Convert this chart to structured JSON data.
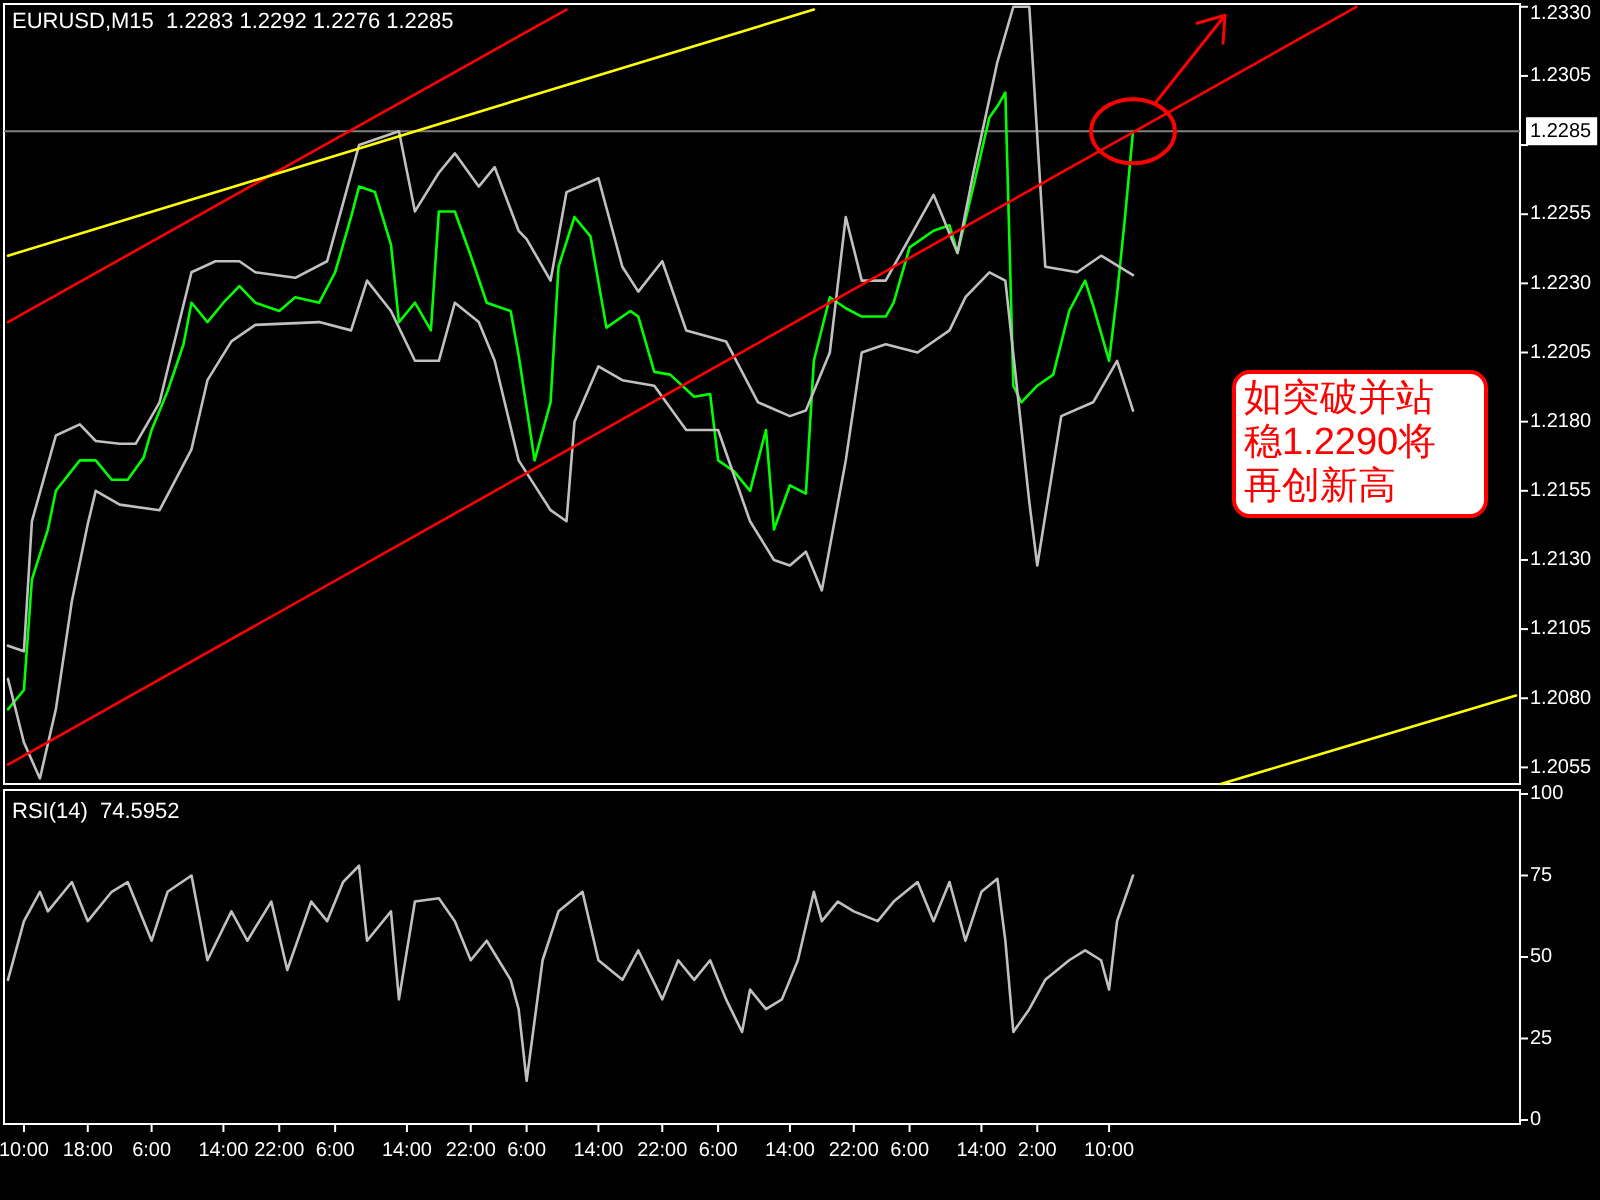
{
  "chart_data": [
    {
      "type": "line",
      "title": "EURUSD,M15  1.2283 1.2292 1.2276 1.2285",
      "categories": [
        null,
        null,
        null,
        null,
        null,
        null,
        null,
        null,
        null,
        null,
        null,
        null,
        null,
        null,
        null,
        null,
        null,
        null,
        null,
        null,
        null,
        null,
        null,
        null,
        null,
        null,
        null,
        null,
        null,
        null,
        null,
        null,
        null,
        null,
        null,
        null,
        null,
        null,
        null,
        null,
        null,
        null,
        null,
        null,
        null,
        null,
        null,
        null,
        null,
        null,
        null,
        null,
        null,
        null,
        null,
        null,
        null,
        null,
        null,
        null,
        null,
        null,
        null,
        null,
        null,
        null,
        null,
        null,
        null,
        null,
        null,
        null,
        null,
        null,
        null,
        null,
        null,
        null,
        null,
        null,
        null,
        null,
        null,
        null,
        null,
        null,
        null,
        null,
        null,
        null,
        null,
        null,
        null,
        null,
        null,
        null,
        null,
        null,
        null,
        null,
        null,
        null,
        null,
        null,
        null,
        null,
        null,
        null,
        null,
        null,
        null,
        null,
        null,
        null,
        null,
        null,
        null,
        null,
        null,
        null,
        null,
        null,
        null,
        null,
        null,
        null,
        null,
        null,
        null,
        null,
        null,
        null,
        null,
        null,
        null,
        null,
        null,
        null,
        null,
        null,
        null,
        null,
        null,
        null,
        null,
        null,
        null,
        null,
        null,
        null,
        null,
        null,
        null,
        null,
        null,
        null,
        null,
        null,
        null,
        null,
        null,
        null,
        null,
        null,
        null,
        null,
        null,
        null,
        null,
        null,
        null,
        null,
        null,
        null,
        null,
        null,
        null,
        null,
        null,
        null,
        null,
        null,
        null,
        null,
        null,
        null,
        null,
        null,
        null,
        null
      ],
      "ylim": [
        1.2049,
        1.2331
      ],
      "yticks": [
        {
          "value": 1.233,
          "label": "1.2330"
        },
        1.2305,
        {
          "value": 1.228,
          "label": null
        },
        1.2255,
        {
          "value": 1.223,
          "label": "1.2230"
        },
        1.2205,
        {
          "value": 1.218,
          "label": "1.2180"
        },
        1.2155,
        {
          "value": 1.213,
          "label": "1.2130"
        },
        1.2105,
        {
          "value": 1.208,
          "label": "1.2080"
        },
        1.2055
      ],
      "tick_labels": "y",
      "series": [
        {
          "color": "#00ff00",
          "values": [
            1.2076,
            null,
            1.2083,
            1.2123,
            null,
            1.2141,
            1.2155,
            null,
            null,
            1.2166,
            null,
            1.2166,
            null,
            1.2159,
            null,
            1.2159,
            null,
            1.2167,
            1.2177,
            null,
            1.2191,
            null,
            1.2208,
            1.2223,
            null,
            1.2216,
            null,
            1.2223,
            null,
            1.2229,
            null,
            1.2223,
            null,
            null,
            1.222,
            null,
            1.2225,
            null,
            null,
            1.2223,
            null,
            1.2234,
            null,
            1.2254,
            1.2265,
            null,
            1.2263,
            null,
            1.2244,
            1.2216,
            null,
            1.2223,
            null,
            1.2213,
            1.2256,
            null,
            1.2256,
            null,
            1.224,
            null,
            1.2223,
            null,
            null,
            1.222,
            1.2204,
            null,
            1.2166,
            null,
            1.2187,
            1.2236,
            null,
            1.2254,
            null,
            1.2247,
            null,
            1.2214,
            null,
            null,
            1.222,
            1.2218,
            null,
            1.2198,
            null,
            1.2197,
            null,
            null,
            1.2189,
            null,
            1.219,
            1.2166,
            null,
            1.2162,
            null,
            1.2155,
            null,
            1.2177,
            1.2141,
            null,
            1.2157,
            null,
            1.2154,
            1.2202,
            null,
            1.2225,
            null,
            1.2221,
            null,
            1.2218,
            null,
            null,
            1.2218,
            1.2223,
            null,
            1.2243,
            null,
            null,
            1.2249,
            null,
            1.2251,
            1.2241,
            null,
            1.2265,
            null,
            1.229,
            1.2294,
            1.2299,
            1.2193,
            1.2187,
            null,
            1.2193,
            null,
            1.2197,
            null,
            1.222,
            null,
            1.2231,
            1.2222,
            null,
            1.2202,
            1.2226,
            1.2254,
            1.2285,
            null,
            null,
            null,
            null,
            null,
            null,
            null,
            null,
            null,
            null,
            null,
            null,
            null,
            null,
            null,
            null,
            null,
            null,
            null,
            null,
            null,
            null,
            null,
            null,
            null,
            null,
            null,
            null,
            null,
            null,
            null,
            null,
            null,
            null,
            null,
            null,
            null,
            null,
            null,
            null,
            null,
            null,
            null,
            null,
            null,
            null,
            null,
            null
          ]
        },
        {
          "color": "#c0c0c0",
          "values": [
            1.2099,
            null,
            1.2097,
            1.2144,
            null,
            null,
            1.2175,
            null,
            null,
            1.2179,
            null,
            1.2173,
            null,
            null,
            1.2172,
            null,
            1.2172,
            null,
            null,
            1.2187,
            null,
            null,
            null,
            1.2234,
            null,
            null,
            1.2238,
            null,
            null,
            1.2238,
            null,
            1.2234,
            null,
            null,
            null,
            null,
            1.2232,
            null,
            null,
            null,
            1.2238,
            null,
            null,
            null,
            1.228,
            null,
            null,
            null,
            null,
            1.2285,
            null,
            1.2256,
            null,
            null,
            1.227,
            null,
            1.2277,
            null,
            null,
            1.2265,
            null,
            1.2272,
            null,
            null,
            1.2249,
            1.2246,
            null,
            null,
            1.2231,
            null,
            1.2263,
            null,
            null,
            null,
            1.2268,
            null,
            null,
            1.2236,
            null,
            1.2227,
            null,
            null,
            1.2238,
            null,
            null,
            1.2213,
            null,
            null,
            null,
            null,
            1.2209,
            null,
            null,
            null,
            1.2187,
            null,
            null,
            null,
            1.2182,
            null,
            1.2184,
            null,
            null,
            1.2205,
            null,
            1.2254,
            null,
            1.2231,
            null,
            null,
            1.2231,
            null,
            null,
            null,
            null,
            null,
            1.2262,
            null,
            null,
            1.2241,
            null,
            1.227,
            null,
            null,
            1.231,
            null,
            1.233,
            null,
            1.233,
            null,
            1.2236,
            null,
            null,
            null,
            1.2234,
            null,
            null,
            1.224,
            null,
            null,
            null,
            1.2233,
            null,
            null,
            null,
            null,
            null,
            null,
            null,
            null,
            null,
            null,
            null,
            null,
            null,
            null,
            null,
            null,
            null,
            null,
            null,
            null,
            null,
            null,
            null,
            null,
            null,
            null,
            null,
            null,
            null,
            null,
            null,
            null,
            null,
            null,
            null,
            null,
            null,
            null,
            null,
            null,
            null,
            null,
            null,
            null,
            null,
            null,
            null,
            null
          ]
        },
        {
          "color": "#c0c0c0",
          "values": [
            1.2087,
            null,
            1.2064,
            null,
            1.2051,
            null,
            1.2076,
            null,
            1.2115,
            null,
            1.2143,
            1.2155,
            null,
            null,
            1.215,
            null,
            null,
            null,
            null,
            1.2148,
            null,
            null,
            null,
            1.217,
            null,
            1.2195,
            null,
            null,
            1.2209,
            null,
            null,
            1.2215,
            null,
            null,
            null,
            null,
            null,
            null,
            null,
            1.2216,
            null,
            null,
            null,
            1.2213,
            null,
            1.2231,
            null,
            null,
            1.222,
            null,
            null,
            1.2202,
            null,
            null,
            1.2202,
            null,
            1.2223,
            null,
            null,
            1.2216,
            null,
            1.2202,
            null,
            null,
            1.2166,
            null,
            null,
            null,
            1.2148,
            null,
            1.2144,
            1.218,
            null,
            null,
            1.22,
            null,
            null,
            1.2195,
            null,
            null,
            null,
            1.2193,
            null,
            null,
            null,
            1.2177,
            null,
            null,
            null,
            1.2177,
            null,
            null,
            null,
            1.2144,
            null,
            null,
            1.213,
            null,
            1.2128,
            null,
            1.2133,
            null,
            1.2119,
            null,
            null,
            1.2166,
            null,
            1.2205,
            null,
            null,
            1.2208,
            null,
            null,
            null,
            1.2205,
            null,
            null,
            null,
            1.2213,
            null,
            1.2225,
            null,
            null,
            1.2234,
            null,
            1.2231,
            null,
            null,
            1.2151,
            1.2128,
            null,
            null,
            1.2182,
            null,
            null,
            null,
            1.2187,
            null,
            null,
            1.2202,
            null,
            1.2184,
            null,
            null,
            null,
            null,
            null,
            null,
            null,
            null,
            null,
            null,
            null,
            null,
            null,
            null,
            null,
            null,
            null,
            null,
            null,
            null,
            null,
            null,
            null,
            null,
            null,
            null,
            null,
            null,
            null,
            null,
            null,
            null,
            null,
            null,
            null,
            null,
            null,
            null,
            null,
            null,
            null,
            null,
            null,
            null,
            null,
            null,
            null,
            null
          ]
        },
        {
          "color": "#ff0000",
          "values": [
            1.2216,
            null,
            null,
            null,
            null,
            null,
            null,
            null,
            null,
            null,
            null,
            null,
            null,
            null,
            null,
            null,
            null,
            null,
            null,
            null,
            null,
            null,
            null,
            null,
            null,
            null,
            null,
            null,
            null,
            null,
            null,
            null,
            null,
            null,
            null,
            null,
            null,
            null,
            null,
            null,
            null,
            null,
            null,
            null,
            null,
            null,
            null,
            null,
            null,
            null,
            null,
            null,
            null,
            null,
            null,
            null,
            null,
            null,
            null,
            null,
            null,
            null,
            null,
            null,
            null,
            null,
            null,
            null,
            null,
            null,
            1.2329,
            null,
            null,
            null,
            null,
            null,
            null,
            null,
            null,
            null,
            null,
            null,
            null,
            null,
            null,
            null,
            null,
            null,
            null,
            null,
            null,
            null,
            null,
            null,
            null,
            null,
            null,
            null,
            null,
            null,
            null,
            null,
            null,
            null,
            null,
            null,
            null,
            null,
            null,
            null,
            null,
            null,
            null,
            null,
            null,
            null,
            null,
            null,
            null,
            null,
            null,
            null,
            null,
            null,
            null,
            null,
            null,
            null,
            null,
            null,
            null,
            null,
            null,
            null,
            null,
            null,
            null,
            null,
            null,
            null,
            null,
            null,
            null,
            null,
            null,
            null,
            null,
            null,
            null,
            null,
            null,
            null,
            null,
            null,
            null,
            null,
            null,
            null,
            null,
            null,
            null,
            null,
            null,
            null,
            null,
            null,
            null,
            null,
            null,
            null,
            null,
            null,
            null,
            null,
            null,
            null,
            null,
            null,
            null,
            null,
            null,
            null,
            null,
            null,
            null,
            null,
            null,
            null,
            null,
            null
          ]
        },
        {
          "color": "#ff0000",
          "values": [
            1.2056,
            null,
            null,
            null,
            null,
            null,
            null,
            null,
            null,
            null,
            null,
            null,
            null,
            null,
            null,
            null,
            null,
            null,
            null,
            null,
            null,
            null,
            null,
            null,
            null,
            null,
            null,
            null,
            null,
            null,
            null,
            null,
            null,
            null,
            null,
            null,
            null,
            null,
            null,
            null,
            null,
            null,
            null,
            null,
            null,
            null,
            null,
            null,
            null,
            null,
            null,
            null,
            null,
            null,
            null,
            null,
            null,
            null,
            null,
            null,
            null,
            null,
            null,
            null,
            null,
            null,
            null,
            null,
            null,
            null,
            null,
            null,
            null,
            null,
            null,
            null,
            null,
            null,
            null,
            null,
            null,
            null,
            null,
            null,
            null,
            null,
            null,
            null,
            null,
            null,
            null,
            null,
            null,
            null,
            null,
            null,
            null,
            null,
            null,
            null,
            null,
            null,
            null,
            null,
            null,
            null,
            null,
            null,
            null,
            null,
            null,
            null,
            null,
            null,
            null,
            null,
            null,
            null,
            null,
            null,
            null,
            null,
            null,
            null,
            null,
            null,
            null,
            null,
            null,
            null,
            null,
            null,
            null,
            null,
            null,
            null,
            null,
            null,
            null,
            null,
            null,
            null,
            null,
            null,
            null,
            null,
            null,
            null,
            null,
            null,
            null,
            null,
            null,
            null,
            null,
            null,
            null,
            null,
            null,
            null,
            null,
            null,
            null,
            null,
            null,
            null,
            null,
            null,
            null,
            1.233,
            null,
            null,
            null,
            null,
            null,
            null,
            null,
            null,
            null,
            null,
            null,
            null,
            null,
            null,
            null,
            null,
            null,
            null,
            null,
            null
          ]
        },
        {
          "color": "#ffff00",
          "values": [
            1.224,
            null,
            null,
            null,
            null,
            null,
            null,
            null,
            null,
            null,
            null,
            null,
            null,
            null,
            null,
            null,
            null,
            null,
            null,
            null,
            null,
            null,
            null,
            null,
            null,
            null,
            null,
            null,
            null,
            null,
            null,
            null,
            null,
            null,
            null,
            null,
            null,
            null,
            null,
            null,
            null,
            null,
            null,
            null,
            null,
            null,
            null,
            null,
            null,
            null,
            null,
            null,
            null,
            null,
            null,
            null,
            null,
            null,
            null,
            null,
            null,
            null,
            null,
            null,
            null,
            null,
            null,
            null,
            null,
            null,
            null,
            null,
            null,
            null,
            null,
            null,
            null,
            null,
            null,
            null,
            null,
            null,
            null,
            null,
            null,
            null,
            null,
            null,
            null,
            null,
            null,
            null,
            null,
            null,
            null,
            null,
            null,
            null,
            null,
            null,
            null,
            1.2329,
            null,
            null,
            null,
            null,
            null,
            null,
            null,
            null,
            null,
            null,
            null,
            null,
            null,
            null,
            null,
            null,
            null,
            null,
            null,
            null,
            null,
            null,
            null,
            null,
            null,
            null,
            null,
            null,
            null,
            null,
            null,
            null,
            null,
            null,
            null,
            null,
            null,
            null,
            null,
            null,
            null,
            null,
            null,
            null,
            null,
            null,
            null,
            null,
            null,
            null,
            null,
            null,
            null,
            null,
            null,
            null,
            null,
            null,
            null,
            null,
            null,
            null,
            null,
            null,
            null,
            null,
            null,
            null,
            null,
            null,
            null,
            null,
            null,
            null,
            null,
            null,
            null,
            null,
            null,
            null,
            null,
            null,
            null,
            null,
            null,
            null,
            null,
            null
          ]
        },
        {
          "color": "#ffff00",
          "values": [
            null,
            null,
            null,
            null,
            null,
            null,
            null,
            null,
            null,
            null,
            null,
            null,
            null,
            null,
            null,
            null,
            null,
            null,
            null,
            null,
            null,
            null,
            null,
            null,
            null,
            null,
            null,
            null,
            null,
            null,
            null,
            null,
            null,
            null,
            null,
            null,
            null,
            null,
            null,
            null,
            null,
            null,
            null,
            null,
            null,
            null,
            null,
            null,
            null,
            null,
            null,
            null,
            null,
            null,
            null,
            null,
            null,
            null,
            null,
            null,
            null,
            null,
            null,
            null,
            null,
            null,
            null,
            null,
            null,
            null,
            null,
            null,
            null,
            null,
            null,
            null,
            null,
            null,
            null,
            null,
            null,
            null,
            null,
            null,
            null,
            null,
            null,
            null,
            null,
            null,
            null,
            null,
            null,
            null,
            null,
            null,
            null,
            null,
            null,
            null,
            null,
            null,
            null,
            null,
            null,
            null,
            null,
            null,
            null,
            null,
            null,
            null,
            null,
            null,
            null,
            null,
            null,
            null,
            null,
            null,
            null,
            null,
            null,
            null,
            null,
            null,
            null,
            null,
            null,
            null,
            null,
            null,
            null,
            null,
            null,
            null,
            null,
            null,
            null,
            null,
            null,
            null,
            null,
            null,
            null,
            null,
            null,
            null,
            null,
            null,
            null,
            null,
            1.2049,
            null,
            null,
            null,
            null,
            null,
            null,
            null,
            null,
            null,
            null,
            null,
            null,
            null,
            null,
            null,
            null,
            null,
            null,
            null,
            null,
            null,
            null,
            null,
            null,
            null,
            null,
            null,
            null,
            null,
            null,
            null,
            null,
            null,
            null,
            null,
            null,
            1.2081
          ]
        }
      ],
      "ref_lines": [
        {
          "axis": "y",
          "value": 1.2285,
          "label": "1.2285",
          "color": "#808080"
        }
      ],
      "annotations": [
        "如突破并站稳1.2290将再创新高"
      ]
    },
    {
      "type": "line",
      "title": "RSI(14)  74.5952",
      "categories": [
        null,
        null,
        "10:00",
        null,
        null,
        null,
        null,
        null,
        null,
        null,
        "18:00",
        null,
        null,
        null,
        null,
        null,
        null,
        null,
        "6:00",
        null,
        null,
        null,
        null,
        null,
        null,
        null,
        null,
        "14:00",
        null,
        null,
        null,
        null,
        null,
        null,
        "22:00",
        null,
        null,
        null,
        null,
        null,
        null,
        "6:00",
        null,
        null,
        null,
        null,
        null,
        null,
        null,
        null,
        "14:00",
        null,
        null,
        null,
        null,
        null,
        null,
        null,
        "22:00",
        null,
        null,
        null,
        null,
        null,
        null,
        "6:00",
        null,
        null,
        null,
        null,
        null,
        null,
        null,
        null,
        "14:00",
        null,
        null,
        null,
        null,
        null,
        null,
        null,
        "22:00",
        null,
        null,
        null,
        null,
        null,
        null,
        "6:00",
        null,
        null,
        null,
        null,
        null,
        null,
        null,
        null,
        "14:00",
        null,
        null,
        null,
        null,
        null,
        null,
        null,
        "22:00",
        null,
        null,
        null,
        null,
        null,
        null,
        "6:00",
        null,
        null,
        null,
        null,
        null,
        null,
        null,
        null,
        "14:00",
        null,
        null,
        null,
        null,
        null,
        null,
        "2:00",
        null,
        null,
        null,
        null,
        null,
        null,
        null,
        null,
        "10:00",
        null,
        null,
        null,
        null,
        null,
        null,
        null,
        null,
        null,
        null,
        null,
        null,
        null,
        null,
        null,
        null,
        null,
        null,
        null,
        null,
        null,
        null,
        null,
        null,
        null,
        null,
        null,
        null,
        null,
        null,
        null,
        null,
        null,
        null,
        null,
        null,
        null,
        null,
        null,
        null,
        null,
        null,
        null,
        null,
        null,
        null,
        null,
        null,
        null,
        null,
        null
      ],
      "ylim": [
        0,
        100
      ],
      "yticks": [
        0,
        25,
        50,
        75,
        100
      ],
      "series": [
        {
          "color": "#c0c0c0",
          "values": [
            43,
            null,
            61,
            null,
            70,
            64,
            null,
            null,
            73,
            null,
            61,
            null,
            null,
            70,
            null,
            73,
            null,
            null,
            55,
            null,
            70,
            null,
            null,
            75,
            null,
            49,
            null,
            null,
            64,
            null,
            55,
            null,
            null,
            67,
            null,
            46,
            null,
            null,
            67,
            null,
            61,
            null,
            73,
            null,
            78,
            55,
            null,
            null,
            64,
            37,
            null,
            67,
            null,
            null,
            68,
            null,
            61,
            null,
            49,
            null,
            55,
            null,
            null,
            43,
            34,
            12,
            null,
            49,
            null,
            64,
            null,
            null,
            70,
            null,
            49,
            null,
            null,
            43,
            null,
            52,
            null,
            null,
            37,
            null,
            49,
            null,
            43,
            null,
            49,
            null,
            37,
            null,
            27,
            40,
            null,
            34,
            null,
            37,
            null,
            49,
            null,
            70,
            61,
            null,
            67,
            null,
            64,
            null,
            null,
            61,
            null,
            67,
            null,
            null,
            73,
            null,
            61,
            null,
            73,
            null,
            55,
            null,
            70,
            null,
            74,
            55,
            27,
            null,
            34,
            null,
            43,
            null,
            null,
            49,
            null,
            52,
            null,
            49,
            40,
            61,
            null,
            75,
            null,
            null,
            null,
            null,
            null,
            null,
            null,
            null,
            null,
            null,
            null,
            null,
            null,
            null,
            null,
            null,
            null,
            null,
            null,
            null,
            null,
            null,
            null,
            null,
            null,
            null,
            null,
            null,
            null,
            null,
            null,
            null,
            null,
            null,
            null,
            null,
            null,
            null,
            null,
            null,
            null,
            null,
            null,
            null,
            null,
            null,
            null,
            null
          ]
        }
      ]
    }
  ]
}
